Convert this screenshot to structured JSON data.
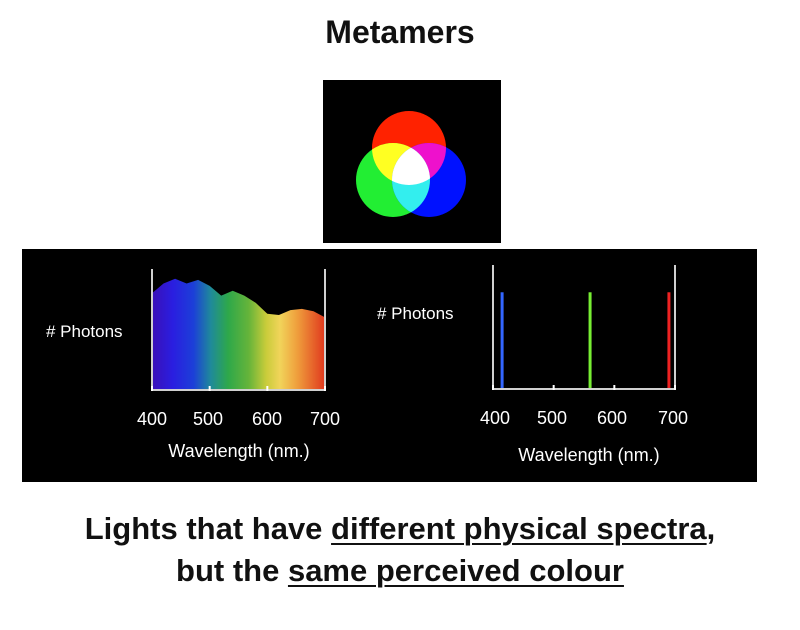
{
  "title": "Metamers",
  "venn": {
    "colors": {
      "red": "#ff2200",
      "green": "#22ee33",
      "blue": "#0011ff",
      "yellow": "#ffff22",
      "magenta": "#ee11cc",
      "cyan": "#33eeee",
      "white": "#ffffff"
    }
  },
  "left_chart": {
    "ylabel": "# Photons",
    "xlabel": "Wavelength (nm.)",
    "ticks": [
      "400",
      "500",
      "600",
      "700"
    ]
  },
  "right_chart": {
    "ylabel": "# Photons",
    "xlabel": "Wavelength (nm.)",
    "ticks": [
      "400",
      "500",
      "600",
      "700"
    ]
  },
  "chart_data": [
    {
      "type": "area",
      "x": [
        400,
        420,
        440,
        460,
        480,
        500,
        520,
        540,
        560,
        580,
        600,
        620,
        640,
        660,
        680,
        700
      ],
      "y": [
        0.8,
        0.88,
        0.92,
        0.88,
        0.91,
        0.86,
        0.78,
        0.82,
        0.78,
        0.72,
        0.63,
        0.62,
        0.66,
        0.67,
        0.65,
        0.6
      ],
      "xlim": [
        400,
        700
      ],
      "ylim": [
        0,
        1
      ],
      "xlabel": "Wavelength (nm.)",
      "ylabel": "# Photons"
    },
    {
      "type": "bar",
      "x": [
        415,
        560,
        690
      ],
      "y": [
        0.78,
        0.78,
        0.78
      ],
      "colors": [
        "#3366ff",
        "#77ee33",
        "#ee2222"
      ],
      "xlim": [
        400,
        700
      ],
      "ylim": [
        0,
        1
      ],
      "xlabel": "Wavelength (nm.)",
      "ylabel": "# Photons"
    }
  ],
  "caption": {
    "line1_pre": "Lights that have ",
    "line1_u": "different physical spectra",
    "line1_post": ",",
    "line2_pre": "but the ",
    "line2_u": "same perceived colour"
  }
}
